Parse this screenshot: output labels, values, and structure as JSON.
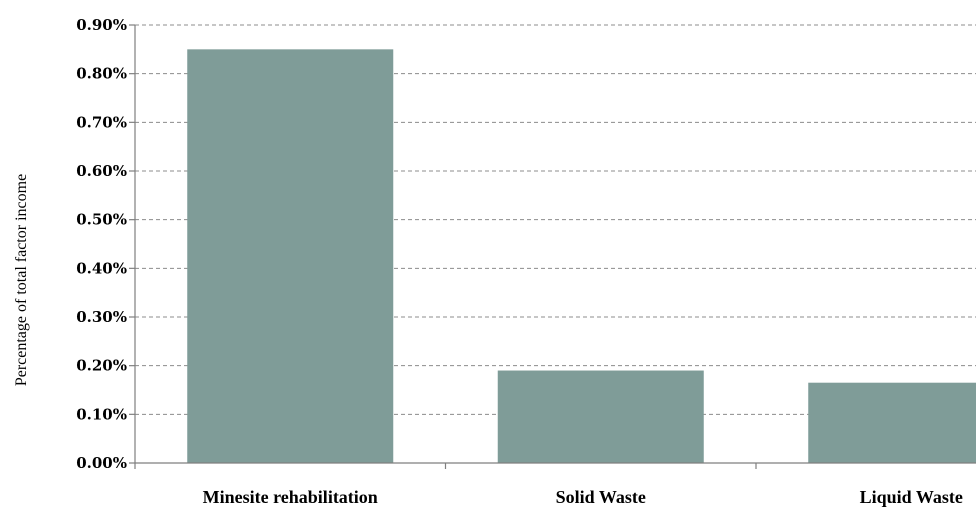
{
  "chart_data": {
    "type": "bar",
    "categories": [
      "Minesite rehabilitation",
      "Solid Waste",
      "Liquid Waste"
    ],
    "values": [
      0.0085,
      0.0019,
      0.00165
    ],
    "ylabel": "Percentage of total factor income",
    "xlabel": "",
    "ylim": [
      0,
      0.009
    ],
    "yticks": [
      0,
      0.001,
      0.002,
      0.003,
      0.004,
      0.005,
      0.006,
      0.007,
      0.008,
      0.009
    ],
    "ytick_labels": [
      "0.00%",
      "0.10%",
      "0.20%",
      "0.30%",
      "0.40%",
      "0.50%",
      "0.60%",
      "0.70%",
      "0.80%",
      "0.90%"
    ],
    "grid": true,
    "legend": "none",
    "bar_color": "#7f9c98"
  }
}
